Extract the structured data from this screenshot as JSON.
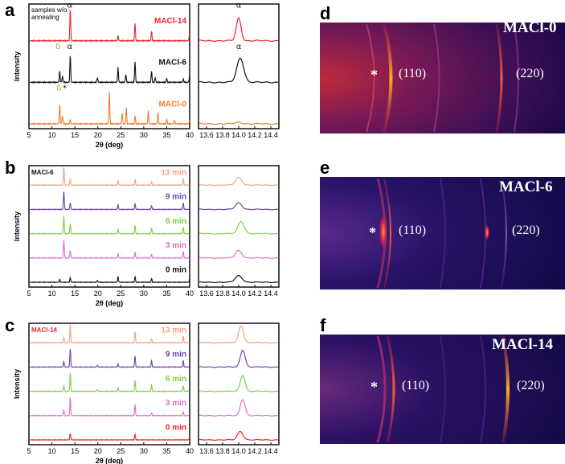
{
  "figure": {
    "panels": [
      {
        "letter": "a",
        "note": "samples w/o\nannealing",
        "curves": [
          {
            "label": "MACl-14",
            "color": "#e8262b",
            "peaks": [
              [
                14.0,
                1.0
              ],
              [
                28.1,
                0.55
              ],
              [
                31.7,
                0.3
              ],
              [
                24.4,
                0.15
              ],
              [
                40.0,
                0.3
              ]
            ]
          },
          {
            "label": "MACl-6",
            "color": "#111111",
            "peaks": [
              [
                11.7,
                0.35
              ],
              [
                12.3,
                0.2
              ],
              [
                14.0,
                0.85
              ],
              [
                19.9,
                0.15
              ],
              [
                24.4,
                0.45
              ],
              [
                26.1,
                0.25
              ],
              [
                28.1,
                0.65
              ],
              [
                31.7,
                0.35
              ],
              [
                32.5,
                0.15
              ],
              [
                35.0,
                0.12
              ],
              [
                38.6,
                0.1
              ],
              [
                40.0,
                0.25
              ]
            ]
          },
          {
            "label": "MACl-0",
            "color": "#ee7d2d",
            "peaks": [
              [
                11.7,
                0.6
              ],
              [
                12.3,
                0.25
              ],
              [
                14.0,
                0.12
              ],
              [
                22.5,
                1.0
              ],
              [
                25.3,
                0.35
              ],
              [
                26.2,
                0.5
              ],
              [
                28.1,
                0.25
              ],
              [
                31.0,
                0.4
              ],
              [
                33.1,
                0.35
              ],
              [
                35.0,
                0.15
              ],
              [
                36.7,
                0.1
              ],
              [
                40.0,
                0.15
              ]
            ]
          }
        ],
        "zoom_curves": [
          {
            "color": "#e8262b",
            "center": 14.0,
            "height": 0.7,
            "width": 0.035
          },
          {
            "color": "#111111",
            "center": 14.02,
            "height": 0.75,
            "width": 0.05
          },
          {
            "color": "#ee7d2d",
            "center": 14.0,
            "height": 0.05,
            "width": 0.05
          }
        ],
        "annotations": [
          {
            "text": "α",
            "curve": 0,
            "x": 13.9
          },
          {
            "text": "α",
            "curve": 1,
            "x": 13.9
          },
          {
            "text": "δ",
            "curve": 1,
            "x": 11.3,
            "color": "#a8a020"
          },
          {
            "text": "δ",
            "curve": 2,
            "x": 11.5,
            "color": "#a8a020"
          },
          {
            "text": "*",
            "curve": 2,
            "x": 12.8
          }
        ],
        "zoom_annotations": [
          {
            "text": "α",
            "curve": 0,
            "x": 14.0
          },
          {
            "text": "α",
            "curve": 1,
            "x": 14.0
          }
        ]
      },
      {
        "letter": "b",
        "sample": "MACl-6",
        "sample_color": "#111111",
        "curves": [
          {
            "label": "13 min",
            "color": "#f4a27e",
            "peaks": [
              [
                12.6,
                1.0
              ],
              [
                14.0,
                0.35
              ],
              [
                24.4,
                0.25
              ],
              [
                28.1,
                0.3
              ],
              [
                31.7,
                0.2
              ],
              [
                38.6,
                0.35
              ]
            ]
          },
          {
            "label": "9 min",
            "color": "#6a45a8",
            "peaks": [
              [
                12.6,
                1.0
              ],
              [
                14.0,
                0.35
              ],
              [
                24.4,
                0.25
              ],
              [
                28.1,
                0.3
              ],
              [
                31.7,
                0.2
              ],
              [
                38.6,
                0.35
              ]
            ]
          },
          {
            "label": "6 min",
            "color": "#7dd23c",
            "peaks": [
              [
                12.6,
                1.0
              ],
              [
                14.0,
                0.55
              ],
              [
                24.4,
                0.25
              ],
              [
                28.1,
                0.45
              ],
              [
                31.7,
                0.3
              ],
              [
                38.6,
                0.35
              ]
            ]
          },
          {
            "label": "3 min",
            "color": "#e06fc5",
            "peaks": [
              [
                12.6,
                1.0
              ],
              [
                14.0,
                0.4
              ],
              [
                24.4,
                0.25
              ],
              [
                28.1,
                0.3
              ],
              [
                31.7,
                0.2
              ],
              [
                38.6,
                0.35
              ]
            ]
          },
          {
            "label": "0 min",
            "color": "#111111",
            "peaks": [
              [
                11.7,
                0.15
              ],
              [
                14.0,
                0.25
              ],
              [
                19.9,
                0.1
              ],
              [
                24.4,
                0.3
              ],
              [
                28.1,
                0.3
              ],
              [
                31.7,
                0.2
              ],
              [
                40.0,
                0.2
              ]
            ]
          }
        ],
        "zoom_curves": [
          {
            "color": "#f4a27e",
            "center": 14.0,
            "height": 0.4,
            "width": 0.045
          },
          {
            "color": "#6a45a8",
            "center": 14.0,
            "height": 0.35,
            "width": 0.045
          },
          {
            "color": "#7dd23c",
            "center": 14.03,
            "height": 0.65,
            "width": 0.045
          },
          {
            "color": "#e06fc5",
            "center": 14.0,
            "height": 0.4,
            "width": 0.045
          },
          {
            "color": "#111111",
            "center": 14.0,
            "height": 0.35,
            "width": 0.05
          }
        ]
      },
      {
        "letter": "c",
        "sample": "MACl-14",
        "sample_color": "#e8262b",
        "curves": [
          {
            "label": "13 min",
            "color": "#f4a27e",
            "peaks": [
              [
                12.6,
                0.3
              ],
              [
                14.0,
                1.0
              ],
              [
                28.1,
                0.6
              ],
              [
                31.7,
                0.2
              ],
              [
                38.6,
                0.35
              ]
            ]
          },
          {
            "label": "9 min",
            "color": "#6a45a8",
            "peaks": [
              [
                12.6,
                0.3
              ],
              [
                14.0,
                1.0
              ],
              [
                19.9,
                0.1
              ],
              [
                24.4,
                0.15
              ],
              [
                28.1,
                0.6
              ],
              [
                31.7,
                0.35
              ],
              [
                38.6,
                0.35
              ]
            ]
          },
          {
            "label": "6 min",
            "color": "#7dd23c",
            "peaks": [
              [
                12.6,
                0.3
              ],
              [
                14.0,
                1.0
              ],
              [
                19.9,
                0.1
              ],
              [
                24.4,
                0.2
              ],
              [
                28.1,
                0.6
              ],
              [
                31.7,
                0.35
              ],
              [
                38.6,
                0.3
              ]
            ]
          },
          {
            "label": "3 min",
            "color": "#e06fc5",
            "peaks": [
              [
                12.6,
                0.3
              ],
              [
                14.0,
                1.0
              ],
              [
                28.1,
                0.6
              ],
              [
                31.7,
                0.15
              ],
              [
                38.6,
                0.2
              ]
            ]
          },
          {
            "label": "0 min",
            "color": "#e8262b",
            "peaks": [
              [
                14.0,
                0.35
              ],
              [
                28.1,
                0.3
              ],
              [
                40.0,
                0.2
              ]
            ]
          }
        ],
        "zoom_curves": [
          {
            "color": "#f4a27e",
            "center": 14.03,
            "height": 0.9,
            "width": 0.035
          },
          {
            "color": "#6a45a8",
            "center": 14.05,
            "height": 0.9,
            "width": 0.035
          },
          {
            "color": "#7dd23c",
            "center": 14.05,
            "height": 0.85,
            "width": 0.035
          },
          {
            "color": "#e06fc5",
            "center": 14.05,
            "height": 0.85,
            "width": 0.035
          },
          {
            "color": "#e8262b",
            "center": 14.02,
            "height": 0.45,
            "width": 0.04
          }
        ]
      }
    ],
    "axes": {
      "xlabel": "2θ (deg)",
      "ylabel": "Intensity",
      "main_ticks": [
        "5",
        "10",
        "15",
        "20",
        "25",
        "30",
        "35",
        "40"
      ],
      "main_tick_values": [
        5,
        10,
        15,
        20,
        25,
        30,
        35,
        40
      ],
      "zoom_ticks": [
        "13.6",
        "13.8",
        "14.0",
        "14.2",
        "14.4"
      ],
      "zoom_tick_values": [
        13.6,
        13.8,
        14.0,
        14.2,
        14.4
      ],
      "main_xlim": [
        5,
        40
      ],
      "zoom_xlim": [
        13.5,
        14.5
      ]
    },
    "giwaxs": [
      {
        "letter": "d",
        "label": "MACl-0",
        "star": "*",
        "ring1": "(110)",
        "ring2": "(220)"
      },
      {
        "letter": "e",
        "label": "MACl-6",
        "star": "*",
        "ring1": "(110)",
        "ring2": "(220)"
      },
      {
        "letter": "f",
        "label": "MACl-14",
        "star": "*",
        "ring1": "(110)",
        "ring2": "(220)"
      }
    ]
  },
  "chart_data": [
    {
      "type": "line",
      "title": "",
      "xlabel": "2θ (deg)",
      "ylabel": "Intensity",
      "xlim": [
        5,
        40
      ],
      "series": [
        {
          "name": "MACl-14",
          "peaks_2theta": [
            14.0,
            24.4,
            28.1,
            31.7,
            40.0
          ]
        },
        {
          "name": "MACl-6",
          "peaks_2theta": [
            11.7,
            12.3,
            14.0,
            19.9,
            24.4,
            26.1,
            28.1,
            31.7,
            32.5,
            35.0,
            38.6,
            40.0
          ]
        },
        {
          "name": "MACl-0",
          "peaks_2theta": [
            11.7,
            12.3,
            14.0,
            22.5,
            25.3,
            26.2,
            28.1,
            31.0,
            33.1,
            35.0,
            36.7,
            40.0
          ]
        }
      ]
    },
    {
      "type": "line",
      "title": "",
      "xlabel": "2θ (deg)",
      "ylabel": "Intensity",
      "xlim": [
        5,
        40
      ],
      "series": [
        {
          "name": "13 min"
        },
        {
          "name": "9 min"
        },
        {
          "name": "6 min"
        },
        {
          "name": "3 min"
        },
        {
          "name": "0 min"
        }
      ]
    },
    {
      "type": "line",
      "title": "",
      "xlabel": "2θ (deg)",
      "ylabel": "Intensity",
      "xlim": [
        5,
        40
      ],
      "series": [
        {
          "name": "13 min"
        },
        {
          "name": "9 min"
        },
        {
          "name": "6 min"
        },
        {
          "name": "3 min"
        },
        {
          "name": "0 min"
        }
      ]
    }
  ]
}
